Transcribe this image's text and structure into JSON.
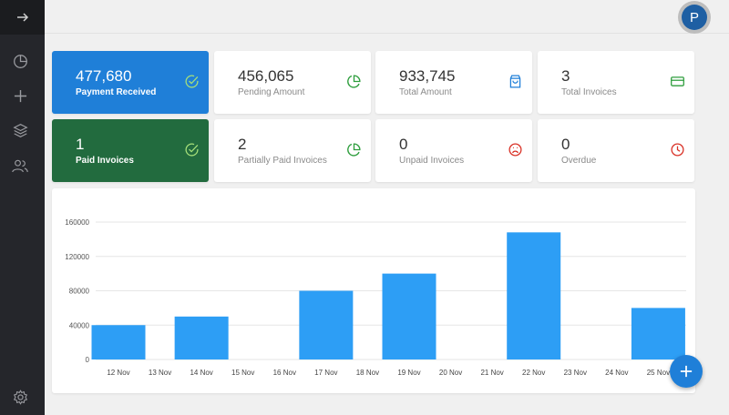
{
  "header": {
    "avatar_initial": "P"
  },
  "cards": [
    {
      "value": "477,680",
      "label": "Payment Received",
      "icon": "check-circle-icon"
    },
    {
      "value": "456,065",
      "label": "Pending Amount",
      "icon": "pie-chart-icon"
    },
    {
      "value": "933,745",
      "label": "Total Amount",
      "icon": "shopping-bag-icon"
    },
    {
      "value": "3",
      "label": "Total Invoices",
      "icon": "credit-card-icon"
    },
    {
      "value": "1",
      "label": "Paid Invoices",
      "icon": "check-circle-icon"
    },
    {
      "value": "2",
      "label": "Partially Paid Invoices",
      "icon": "pie-chart-icon"
    },
    {
      "value": "0",
      "label": "Unpaid Invoices",
      "icon": "frown-icon"
    },
    {
      "value": "0",
      "label": "Overdue",
      "icon": "clock-icon"
    }
  ],
  "colors": {
    "sidebar": "#25262b",
    "blue": "#1f7fd8",
    "green": "#226b3e",
    "bar": "#2d9ef5",
    "icon_green": "#2e9e3d",
    "icon_red": "#d93025",
    "icon_blue": "#1f7fd8",
    "icon_light_green": "#a6e07a"
  },
  "chart_data": {
    "type": "bar",
    "categories": [
      "12 Nov",
      "13 Nov",
      "14 Nov",
      "15 Nov",
      "16 Nov",
      "17 Nov",
      "18 Nov",
      "19 Nov",
      "20 Nov",
      "21 Nov",
      "22 Nov",
      "23 Nov",
      "24 Nov",
      "25 Nov"
    ],
    "values": [
      40000,
      null,
      50000,
      null,
      null,
      80000,
      null,
      100000,
      null,
      null,
      148000,
      null,
      null,
      60000
    ],
    "ytick_labels": [
      "0",
      "40000",
      "80000",
      "120000",
      "160000"
    ],
    "ylim": [
      0,
      160000
    ],
    "grid": true
  }
}
